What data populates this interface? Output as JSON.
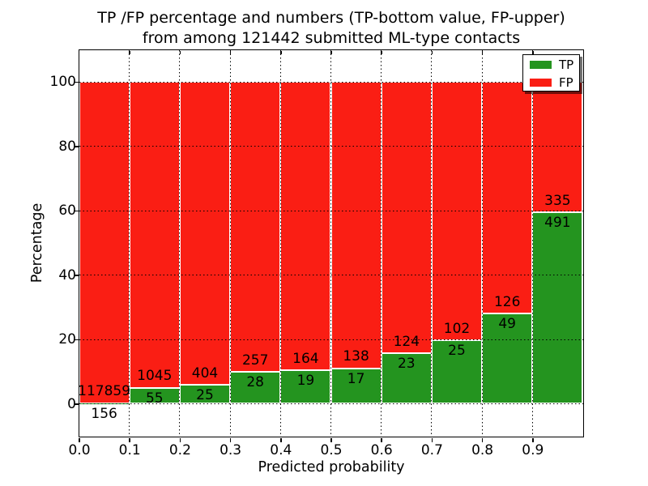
{
  "title": {
    "line1": "TP /FP percentage and numbers (TP-bottom value, FP-upper)",
    "line2": "from among 121442 submitted ML-type contacts"
  },
  "chart_data": {
    "type": "bar",
    "stacked": true,
    "normalized": "each bin stacked to 100 percent; annotations show raw counts (TP bottom value, FP upper)",
    "total_contacts": 121442,
    "bin_start": [
      0.0,
      0.1,
      0.2,
      0.3,
      0.4,
      0.5,
      0.6,
      0.7,
      0.8,
      0.9
    ],
    "bin_width": 0.1,
    "series": [
      {
        "name": "TP",
        "color": "#24941f",
        "counts": [
          156,
          55,
          25,
          28,
          19,
          17,
          23,
          25,
          49,
          491
        ]
      },
      {
        "name": "FP",
        "color": "#fa1e14",
        "counts": [
          117859,
          1045,
          404,
          257,
          164,
          138,
          124,
          102,
          126,
          335
        ]
      }
    ],
    "tp_percent_approx": [
      0.13,
      5.0,
      5.83,
      9.82,
      10.38,
      10.97,
      15.65,
      19.69,
      28.0,
      59.44
    ],
    "xlabel": "Predicted probability",
    "ylabel": "Percentage",
    "xticks": [
      "0.0",
      "0.1",
      "0.2",
      "0.3",
      "0.4",
      "0.5",
      "0.6",
      "0.7",
      "0.8",
      "0.9"
    ],
    "yticks": [
      "0",
      "20",
      "40",
      "60",
      "80",
      "100"
    ],
    "xlim": [
      0,
      1
    ],
    "ylim": [
      -10,
      110
    ],
    "grid": "dotted",
    "legend": {
      "position": "upper right",
      "entries": [
        {
          "label": "TP",
          "color": "#24941f"
        },
        {
          "label": "FP",
          "color": "#fa1e14"
        }
      ]
    }
  }
}
